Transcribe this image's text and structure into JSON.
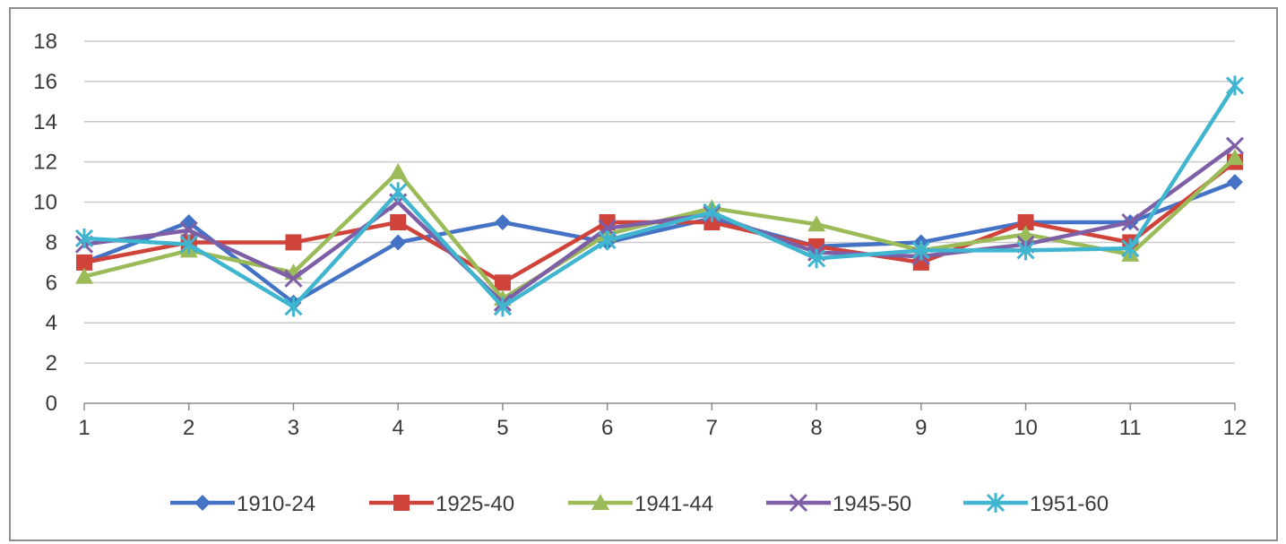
{
  "chart_data": {
    "type": "line",
    "x": [
      1,
      2,
      3,
      4,
      5,
      6,
      7,
      8,
      9,
      10,
      11,
      12
    ],
    "ylim": [
      0,
      18
    ],
    "y_ticks": [
      0,
      2,
      4,
      6,
      8,
      10,
      12,
      14,
      16,
      18
    ],
    "grid": true,
    "legend_position": "bottom",
    "series": [
      {
        "name": "1910-24",
        "color": "#4472C4",
        "marker": "diamond",
        "values": [
          7.0,
          9.0,
          5.0,
          8.0,
          9.0,
          8.0,
          9.2,
          7.8,
          8.0,
          9.0,
          9.0,
          11.0
        ]
      },
      {
        "name": "1925-40",
        "color": "#D0433A",
        "marker": "square",
        "values": [
          7.0,
          8.0,
          8.0,
          9.0,
          6.0,
          9.0,
          9.0,
          7.8,
          7.0,
          9.0,
          8.0,
          12.0
        ]
      },
      {
        "name": "1941-44",
        "color": "#9BBB59",
        "marker": "triangle",
        "values": [
          6.3,
          7.6,
          6.5,
          11.5,
          5.2,
          8.4,
          9.7,
          8.9,
          7.6,
          8.4,
          7.4,
          12.2
        ]
      },
      {
        "name": "1945-50",
        "color": "#7E5FA6",
        "marker": "x",
        "values": [
          7.9,
          8.6,
          6.2,
          10.0,
          5.0,
          8.7,
          9.4,
          7.5,
          7.3,
          7.9,
          9.0,
          12.8
        ]
      },
      {
        "name": "1951-60",
        "color": "#3FB5D0",
        "marker": "star",
        "values": [
          8.2,
          7.9,
          4.8,
          10.5,
          4.8,
          8.1,
          9.5,
          7.2,
          7.6,
          7.6,
          7.7,
          15.8
        ]
      }
    ]
  }
}
